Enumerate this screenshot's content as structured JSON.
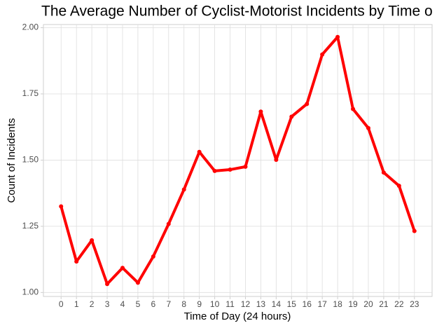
{
  "chart_data": {
    "type": "line",
    "title": "The Average Number of Cyclist-Motorist Incidents by Time o",
    "x_label": "Time of Day (24 hours)",
    "y_label": "Count of Incidents",
    "x": [
      0,
      1,
      2,
      3,
      4,
      5,
      6,
      7,
      8,
      9,
      10,
      11,
      12,
      13,
      14,
      15,
      16,
      17,
      18,
      19,
      20,
      21,
      22,
      23
    ],
    "series": [
      {
        "name": "Incidents",
        "color": "#ff0000",
        "values": [
          1.325,
          1.117,
          1.197,
          1.032,
          1.093,
          1.037,
          1.136,
          1.259,
          1.389,
          1.531,
          1.459,
          1.464,
          1.475,
          1.683,
          1.501,
          1.664,
          1.712,
          1.899,
          1.965,
          1.693,
          1.621,
          1.453,
          1.403,
          1.232
        ]
      }
    ],
    "xlim": [
      -1.15,
      24.15
    ],
    "xticks": [
      0,
      1,
      2,
      3,
      4,
      5,
      6,
      7,
      8,
      9,
      10,
      11,
      12,
      13,
      14,
      15,
      16,
      17,
      18,
      19,
      20,
      21,
      22,
      23
    ],
    "ylim": [
      0.985,
      2.012
    ],
    "yticks": [
      {
        "value": 1,
        "label": "1.00"
      },
      {
        "value": 1.25,
        "label": "1.25"
      },
      {
        "value": 1.5,
        "label": "1.50"
      },
      {
        "value": 1.75,
        "label": "1.75"
      },
      {
        "value": 2,
        "label": "2.00"
      }
    ],
    "grid": true
  }
}
